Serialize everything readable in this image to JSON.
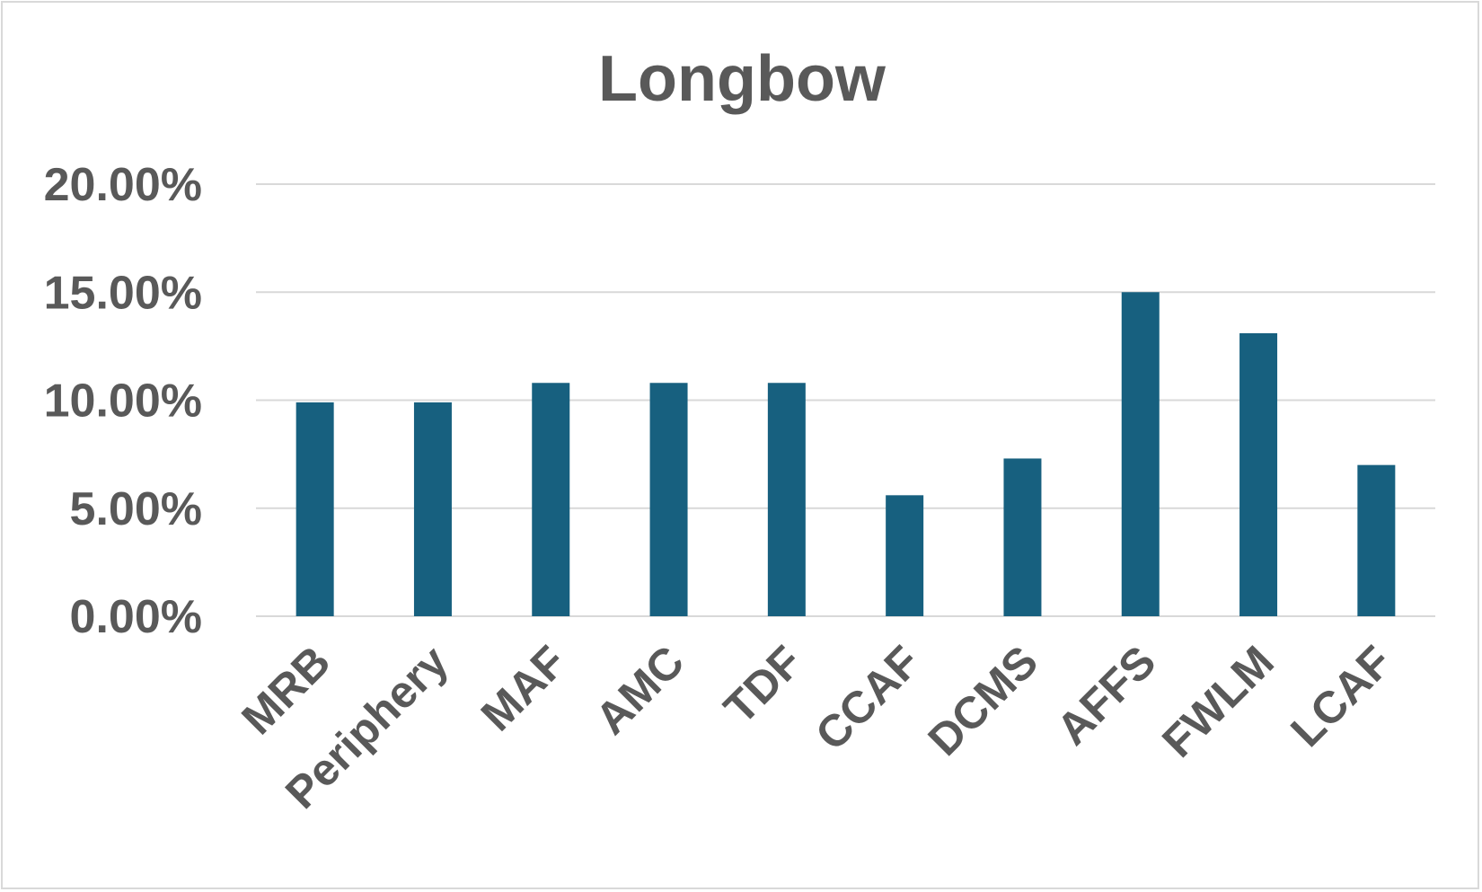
{
  "chart_data": {
    "type": "bar",
    "title": "Longbow",
    "xlabel": "",
    "ylabel": "",
    "categories": [
      "MRB",
      "Periphery",
      "MAF",
      "AMC",
      "TDF",
      "CCAF",
      "DCMS",
      "AFFS",
      "FWLM",
      "LCAF"
    ],
    "values": [
      9.9,
      9.9,
      10.8,
      10.8,
      10.8,
      5.6,
      7.3,
      15.0,
      13.1,
      7.0
    ],
    "ylim": [
      0,
      20
    ],
    "yticks": [
      0,
      5,
      10,
      15,
      20
    ],
    "ytick_labels": [
      "0.00%",
      "5.00%",
      "10.00%",
      "15.00%",
      "20.00%"
    ],
    "grid": true,
    "legend": "none",
    "bar_color": "#17607f",
    "grid_color": "#d9d9d9",
    "text_color": "#595959"
  }
}
